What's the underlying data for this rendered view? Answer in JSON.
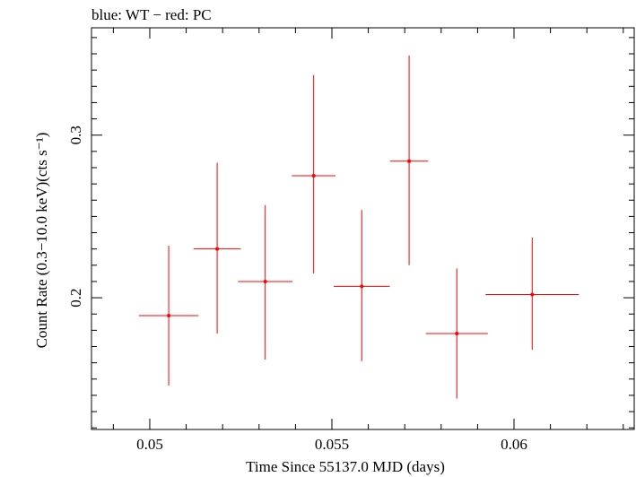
{
  "chart_data": {
    "type": "scatter",
    "title": "blue: WT − red: PC",
    "xlabel": "Time Since 55137.0 MJD (days)",
    "ylabel": "Count Rate (0.3−10.0 keV)(cts s⁻¹)",
    "xlim": [
      0.0484,
      0.0633
    ],
    "ylim": [
      0.119,
      0.366
    ],
    "x_major_ticks": [
      0.05,
      0.055,
      0.06
    ],
    "x_tick_labels": [
      "0.05",
      "0.055",
      "0.06"
    ],
    "x_minor_step": 0.001,
    "y_major_ticks": [
      0.2,
      0.3
    ],
    "y_tick_labels": [
      "0.2",
      "0.3"
    ],
    "y_minor_step": 0.01,
    "grid": false,
    "series": [
      {
        "name": "PC",
        "color": "#ff0000",
        "points": [
          {
            "x": 0.05052,
            "xerr": 0.00082,
            "y": 0.189,
            "ylo": 0.146,
            "yhi": 0.232
          },
          {
            "x": 0.05185,
            "xerr": 0.00065,
            "y": 0.23,
            "ylo": 0.178,
            "yhi": 0.283
          },
          {
            "x": 0.05317,
            "xerr": 0.00075,
            "y": 0.21,
            "ylo": 0.162,
            "yhi": 0.257
          },
          {
            "x": 0.0545,
            "xerr": 0.0006,
            "y": 0.275,
            "ylo": 0.215,
            "yhi": 0.337
          },
          {
            "x": 0.05582,
            "xerr": 0.00077,
            "y": 0.207,
            "ylo": 0.161,
            "yhi": 0.254
          },
          {
            "x": 0.05712,
            "xerr": 0.00052,
            "y": 0.284,
            "ylo": 0.22,
            "yhi": 0.349
          },
          {
            "x": 0.05843,
            "xerr": 0.00085,
            "y": 0.178,
            "ylo": 0.138,
            "yhi": 0.218
          },
          {
            "x": 0.0605,
            "xerr": 0.00128,
            "y": 0.202,
            "ylo": 0.168,
            "yhi": 0.237
          }
        ]
      }
    ]
  }
}
